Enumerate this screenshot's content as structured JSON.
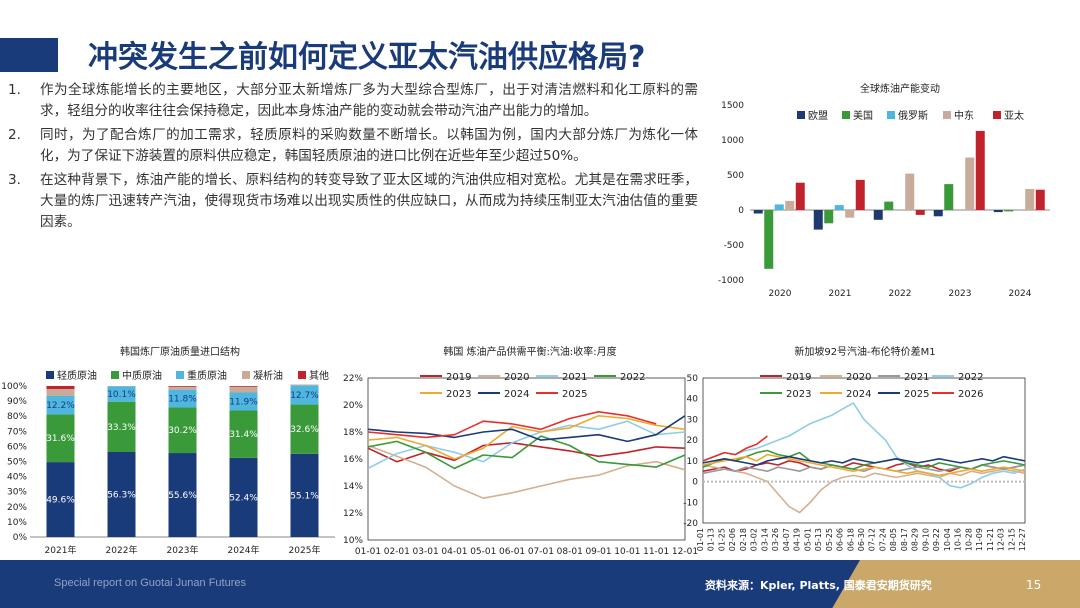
{
  "slide": {
    "title": "冲突发生之前如何定义亚太汽油供应格局?",
    "paragraphs": [
      {
        "num": "1.",
        "text": "作为全球炼能增长的主要地区，大部分亚太新增炼厂多为大型综合型炼厂，出于对清洁燃料和化工原料的需求，轻组分的收率往往会保持稳定，因此本身炼油产能的变动就会带动汽油产出能力的增加。"
      },
      {
        "num": "2.",
        "text": "同时，为了配合炼厂的加工需求，轻质原料的采购数量不断增长。以韩国为例，国内大部分炼厂为炼化一体化，为了保证下游装置的原料供应稳定，韩国轻质原油的进口比例在近些年至少超过50%。"
      },
      {
        "num": "3.",
        "text": "在这种背景下，炼油产能的增长、原料结构的转变导致了亚太区域的汽油供应相对宽松。尤其是在需求旺季，大量的炼厂迅速转产汽油，使得现货市场难以出现实质性的供应缺口，从而成为持续压制亚太汽油估值的重要因素。"
      }
    ],
    "footer_left": "Special report on Guotai Junan Futures",
    "footer_source": "资料来源：Kpler, Platts, 国泰君安期货研究",
    "page_number": "15"
  },
  "chart_data": [
    {
      "id": "capacity",
      "type": "bar",
      "title": "全球炼油产能变动",
      "categories": [
        "2020",
        "2021",
        "2022",
        "2023",
        "2024"
      ],
      "ylim": [
        -1000,
        1500
      ],
      "yticks": [
        "-1000",
        "-500",
        "0",
        "500",
        "1000",
        "1500"
      ],
      "legend_position": "top",
      "series": [
        {
          "name": "欧盟",
          "color": "#1f3a6e",
          "values": [
            -50,
            -280,
            -140,
            -90,
            -30
          ]
        },
        {
          "name": "美国",
          "color": "#3a9a3a",
          "values": [
            -840,
            -190,
            120,
            370,
            -20
          ]
        },
        {
          "name": "俄罗斯",
          "color": "#4fb6e0",
          "values": [
            80,
            70,
            0,
            0,
            0
          ]
        },
        {
          "name": "中东",
          "color": "#c9ab9a",
          "values": [
            130,
            -110,
            520,
            750,
            300
          ]
        },
        {
          "name": "亚太",
          "color": "#c0232b",
          "values": [
            390,
            430,
            -70,
            1130,
            290
          ]
        }
      ]
    },
    {
      "id": "korea-crude",
      "type": "bar",
      "title": "韩国炼厂原油质量进口结构",
      "categories": [
        "2021年",
        "2022年",
        "2023年",
        "2024年",
        "2025年"
      ],
      "ylim": [
        0,
        100
      ],
      "yticks": [
        "0%",
        "10%",
        "20%",
        "30%",
        "40%",
        "50%",
        "60%",
        "70%",
        "80%",
        "90%",
        "100%"
      ],
      "legend_position": "top",
      "series": [
        {
          "name": "轻质原油",
          "color": "#1a3b7a",
          "values": [
            49.6,
            56.3,
            55.6,
            52.4,
            55.1
          ],
          "labels": [
            "49.6%",
            "56.3%",
            "55.6%",
            "52.4%",
            "55.1%"
          ]
        },
        {
          "name": "中质原油",
          "color": "#3a9a3a",
          "values": [
            31.6,
            33.3,
            30.2,
            31.4,
            32.6
          ],
          "labels": [
            "31.6%",
            "33.3%",
            "30.2%",
            "31.4%",
            "32.6%"
          ]
        },
        {
          "name": "重质原油",
          "color": "#4fb6e0",
          "values": [
            12.2,
            10.1,
            11.8,
            11.9,
            12.7
          ],
          "labels": [
            "12.2%",
            "10.1%",
            "11.8%",
            "11.9%",
            "12.7%"
          ]
        },
        {
          "name": "凝析油",
          "color": "#c9ab9a",
          "values": [
            4.6,
            0.3,
            1.9,
            3.8,
            0.6
          ]
        },
        {
          "name": "其他",
          "color": "#c0232b",
          "values": [
            2.0,
            0.0,
            0.5,
            0.5,
            0.0
          ]
        }
      ]
    },
    {
      "id": "korea-yield",
      "type": "line",
      "title": "韩国 炼油产品供需平衡:汽油:收率:月度",
      "categories": [
        "01-01",
        "02-01",
        "03-01",
        "04-01",
        "05-01",
        "06-01",
        "07-01",
        "08-01",
        "09-01",
        "10-01",
        "11-01",
        "12-01"
      ],
      "ylim": [
        10,
        22
      ],
      "yticks": [
        "10%",
        "12%",
        "14%",
        "16%",
        "18%",
        "20%",
        "22%"
      ],
      "legend_position": "top",
      "series": [
        {
          "name": "2019",
          "color": "#c0232b",
          "values": [
            16.8,
            15.8,
            16.5,
            15.9,
            17.0,
            17.2,
            16.9,
            16.6,
            16.2,
            16.5,
            16.9,
            16.8
          ]
        },
        {
          "name": "2020",
          "color": "#d4b090",
          "values": [
            17.0,
            16.2,
            15.4,
            14.0,
            13.1,
            13.5,
            14.0,
            14.5,
            14.8,
            15.5,
            15.8,
            15.2
          ]
        },
        {
          "name": "2021",
          "color": "#8ecde6",
          "values": [
            15.3,
            16.4,
            17.0,
            16.5,
            15.8,
            17.2,
            18.0,
            18.5,
            18.2,
            18.8,
            17.8,
            18.0
          ]
        },
        {
          "name": "2022",
          "color": "#3a9a3a",
          "values": [
            16.9,
            17.3,
            16.5,
            15.3,
            16.3,
            16.1,
            17.7,
            17.0,
            15.8,
            15.6,
            15.4,
            16.3
          ]
        },
        {
          "name": "2023",
          "color": "#f0a830",
          "values": [
            17.4,
            17.6,
            17.0,
            16.0,
            16.8,
            18.4,
            18.0,
            18.3,
            19.2,
            19.0,
            18.5,
            18.2
          ]
        },
        {
          "name": "2024",
          "color": "#1a3b7a",
          "values": [
            18.2,
            18.0,
            17.9,
            17.6,
            18.0,
            18.2,
            17.4,
            17.6,
            17.8,
            17.3,
            17.8,
            19.2
          ]
        },
        {
          "name": "2025",
          "color": "#e8302a",
          "values": [
            18.0,
            17.8,
            17.6,
            17.8,
            18.8,
            18.6,
            18.2,
            19.0,
            19.5,
            19.2,
            18.6,
            null
          ]
        }
      ]
    },
    {
      "id": "sg92-brent",
      "type": "line",
      "title": "新加坡92号汽油-布伦特价差M1",
      "categories": [
        "01-01",
        "01-13",
        "01-25",
        "02-06",
        "02-18",
        "03-02",
        "03-14",
        "03-26",
        "04-07",
        "04-19",
        "05-01",
        "05-13",
        "05-25",
        "06-06",
        "06-18",
        "06-30",
        "07-12",
        "07-24",
        "08-05",
        "08-17",
        "08-29",
        "09-10",
        "09-22",
        "10-04",
        "10-16",
        "10-28",
        "11-09",
        "11-21",
        "12-03",
        "12-15",
        "12-27"
      ],
      "ylim": [
        -20,
        50
      ],
      "yticks": [
        "-20",
        "-10",
        "0",
        "10",
        "20",
        "30",
        "40",
        "50"
      ],
      "legend_position": "top",
      "series": [
        {
          "name": "2019",
          "color": "#c0232b",
          "values": [
            5,
            6,
            7,
            5,
            6,
            8,
            9,
            8,
            10,
            9,
            7,
            6,
            8,
            7,
            9,
            8,
            7,
            6,
            8,
            9,
            7,
            8,
            6,
            5,
            7,
            6,
            8,
            7,
            6,
            7,
            8
          ]
        },
        {
          "name": "2020",
          "color": "#d4b090",
          "values": [
            8,
            7,
            6,
            5,
            4,
            2,
            0,
            -6,
            -12,
            -15,
            -10,
            -4,
            0,
            2,
            3,
            2,
            4,
            3,
            2,
            3,
            4,
            3,
            2,
            4,
            3,
            5,
            4,
            5,
            6,
            5,
            4
          ]
        },
        {
          "name": "2021",
          "color": "#999999",
          "values": [
            4,
            5,
            6,
            5,
            7,
            6,
            5,
            7,
            6,
            5,
            7,
            6,
            8,
            7,
            6,
            5,
            7,
            6,
            5,
            6,
            7,
            6,
            5,
            6,
            7,
            6,
            8,
            7,
            6,
            7,
            8
          ]
        },
        {
          "name": "2022",
          "color": "#8ecde6",
          "values": [
            10,
            12,
            14,
            13,
            15,
            16,
            18,
            20,
            22,
            25,
            28,
            30,
            32,
            35,
            38,
            30,
            25,
            20,
            12,
            8,
            5,
            4,
            2,
            -2,
            -3,
            -1,
            2,
            4,
            5,
            4,
            6
          ]
        },
        {
          "name": "2023",
          "color": "#3a9a3a",
          "values": [
            7,
            9,
            11,
            10,
            12,
            14,
            15,
            13,
            12,
            14,
            10,
            9,
            8,
            7,
            6,
            8,
            9,
            10,
            11,
            9,
            8,
            7,
            9,
            8,
            7,
            6,
            8,
            9,
            10,
            9,
            8
          ]
        },
        {
          "name": "2024",
          "color": "#f0a830",
          "values": [
            8,
            9,
            10,
            11,
            12,
            10,
            13,
            12,
            11,
            10,
            9,
            8,
            7,
            6,
            5,
            6,
            7,
            6,
            5,
            4,
            5,
            4,
            3,
            4,
            5,
            6,
            5,
            6,
            7,
            6,
            5
          ]
        },
        {
          "name": "2025",
          "color": "#1a3b7a",
          "values": [
            9,
            10,
            11,
            10,
            9,
            8,
            10,
            11,
            12,
            11,
            10,
            9,
            10,
            9,
            11,
            10,
            9,
            10,
            11,
            10,
            9,
            10,
            11,
            10,
            9,
            10,
            11,
            10,
            12,
            11,
            10
          ]
        },
        {
          "name": "2026",
          "color": "#e8302a",
          "values": [
            10,
            12,
            14,
            13,
            16,
            18,
            22,
            null,
            null,
            null,
            null,
            null,
            null,
            null,
            null,
            null,
            null,
            null,
            null,
            null,
            null,
            null,
            null,
            null,
            null,
            null,
            null,
            null,
            null,
            null,
            null
          ]
        }
      ]
    }
  ]
}
